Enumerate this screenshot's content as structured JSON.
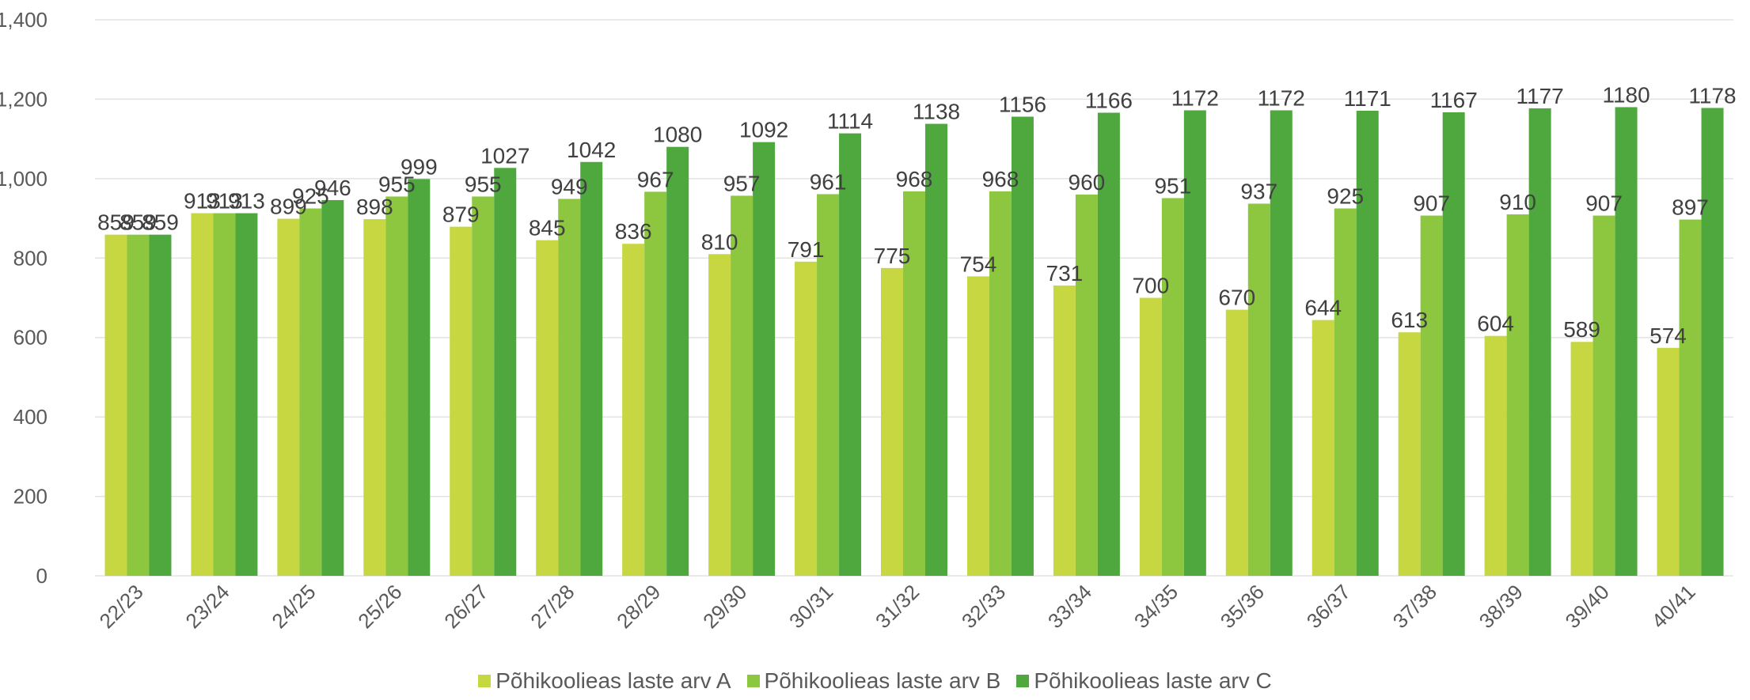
{
  "chart_data": {
    "type": "bar",
    "title": "",
    "xlabel": "",
    "ylabel": "",
    "ylim": [
      0,
      1400
    ],
    "yticks": [
      0,
      200,
      400,
      600,
      800,
      1000,
      1200,
      1400
    ],
    "ytick_labels": [
      "0",
      "200",
      "400",
      "600",
      "800",
      "1,000",
      "1,200",
      "1,400"
    ],
    "grid": true,
    "legend_position": "bottom",
    "categories": [
      "22/23",
      "23/24",
      "24/25",
      "25/26",
      "26/27",
      "27/28",
      "28/29",
      "29/30",
      "30/31",
      "31/32",
      "32/33",
      "33/34",
      "34/35",
      "35/36",
      "36/37",
      "37/38",
      "38/39",
      "39/40",
      "40/41"
    ],
    "series": [
      {
        "name": "Põhikoolieas laste arv  A",
        "color": "#c6d741",
        "values": [
          859,
          913,
          899,
          898,
          879,
          845,
          836,
          810,
          791,
          775,
          754,
          731,
          700,
          670,
          644,
          613,
          604,
          589,
          574
        ]
      },
      {
        "name": "Põhikoolieas laste arv  B",
        "color": "#8dc63f",
        "values": [
          859,
          913,
          925,
          955,
          955,
          949,
          967,
          957,
          961,
          968,
          968,
          960,
          951,
          937,
          925,
          907,
          910,
          907,
          897
        ]
      },
      {
        "name": "Põhikoolieas laste arv  C",
        "color": "#4ea83e",
        "values": [
          859,
          913,
          946,
          999,
          1027,
          1042,
          1080,
          1092,
          1114,
          1138,
          1156,
          1166,
          1172,
          1172,
          1171,
          1167,
          1177,
          1180,
          1178
        ]
      }
    ]
  }
}
